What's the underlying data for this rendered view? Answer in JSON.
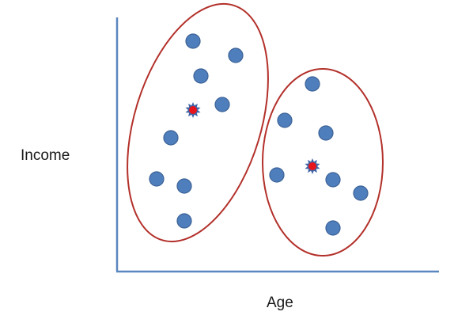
{
  "axes": {
    "x_label": "Age",
    "y_label": "Income"
  },
  "colors": {
    "axis": "#5b87c0",
    "point_fill": "#4f7ebd",
    "point_stroke": "#3c6296",
    "centroid_fill": "#e8141b",
    "centroid_star": "#3e64a6",
    "cluster_outline": "#b3302a"
  },
  "icons": {
    "centroid": "centroid-star-icon",
    "point": "data-point-dot"
  }
}
